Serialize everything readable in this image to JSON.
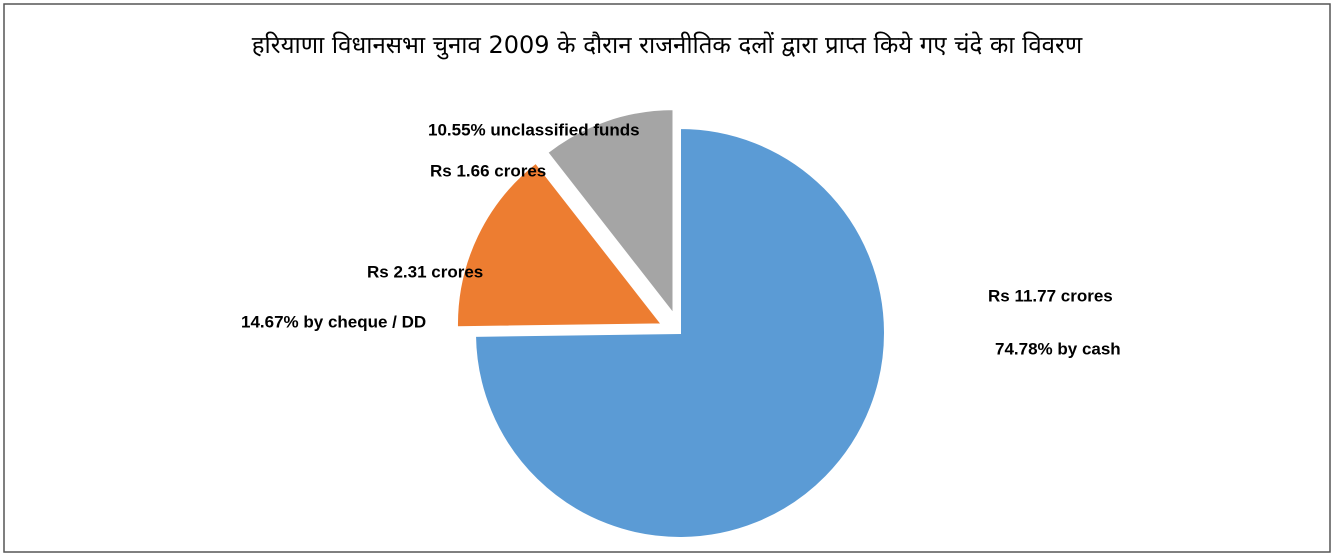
{
  "chart_data": {
    "type": "pie",
    "title": "हरियाणा विधानसभा चुनाव 2009 के दौरान राजनीतिक दलों द्वारा प्राप्त किये गए चंदे का विवरण",
    "values": [
      74.78,
      14.67,
      10.55
    ],
    "value_labels": [
      "74.78% by cash",
      "14.67% by cheque / DD",
      "10.55% unclassified funds"
    ],
    "amount_labels": [
      "Rs 11.77 crores",
      "Rs 2.31 crores",
      "Rs 1.66 crores"
    ],
    "colors": [
      "#5b9bd5",
      "#ed7d31",
      "#a5a5a5"
    ]
  }
}
